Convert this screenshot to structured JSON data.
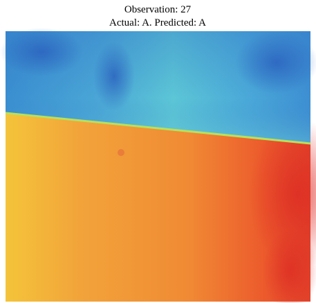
{
  "title": {
    "line1": "Observation: 27",
    "line2": "Actual: A. Predicted: A"
  }
}
